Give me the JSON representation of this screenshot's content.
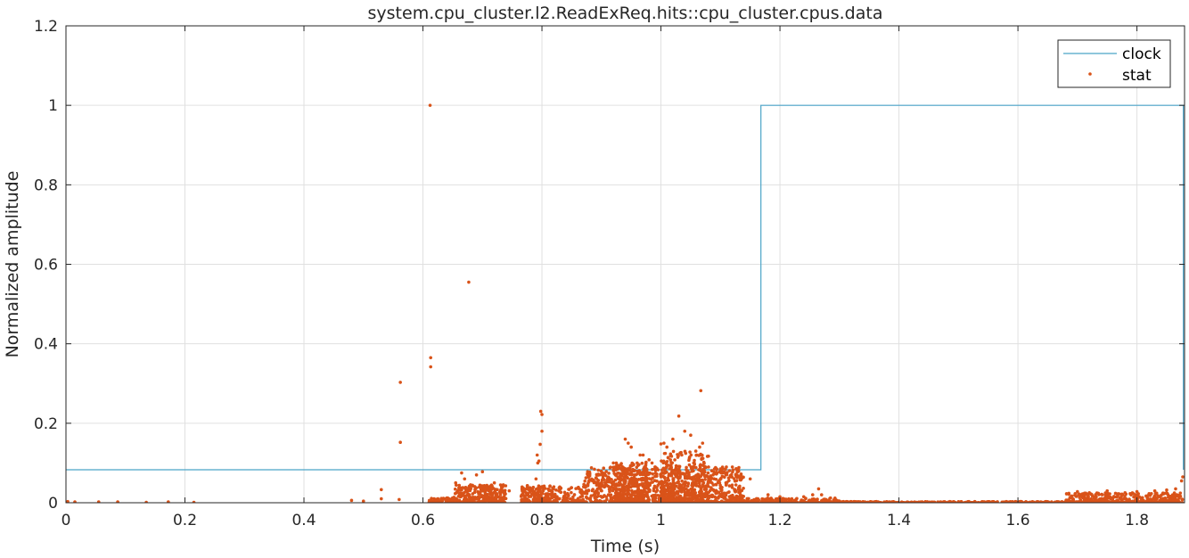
{
  "chart_data": {
    "type": "line+scatter",
    "title": "system.cpu_cluster.l2.ReadExReq.hits::cpu_cluster.cpus.data",
    "xlabel": "Time (s)",
    "ylabel": "Normalized amplitude",
    "xlim": [
      0,
      1.88
    ],
    "ylim": [
      0,
      1.2
    ],
    "xticks": [
      "0",
      "0.2",
      "0.4",
      "0.6",
      "0.8",
      "1",
      "1.2",
      "1.4",
      "1.6",
      "1.8"
    ],
    "yticks": [
      "0",
      "0.2",
      "0.4",
      "0.6",
      "0.8",
      "1",
      "1.2"
    ],
    "grid": true,
    "legend_position": "top-right",
    "colors": {
      "clock": "#4aa3c8",
      "stat": "#d95319",
      "grid": "#e0e0e0",
      "axis": "#262626"
    },
    "series": [
      {
        "name": "clock",
        "kind": "line",
        "x": [
          0,
          1.168,
          1.168,
          1.878,
          1.878
        ],
        "y": [
          0.083,
          0.083,
          1.0,
          1.0,
          0.083
        ]
      },
      {
        "name": "stat",
        "kind": "scatter",
        "points": [
          [
            0.003,
            0.003
          ],
          [
            0.015,
            0.002
          ],
          [
            0.055,
            0.002
          ],
          [
            0.087,
            0.002
          ],
          [
            0.135,
            0.001
          ],
          [
            0.172,
            0.002
          ],
          [
            0.215,
            0.001
          ],
          [
            0.48,
            0.006
          ],
          [
            0.5,
            0.004
          ],
          [
            0.53,
            0.01
          ],
          [
            0.53,
            0.033
          ],
          [
            0.56,
            0.008
          ],
          [
            0.562,
            0.303
          ],
          [
            0.562,
            0.152
          ],
          [
            0.612,
            1.0
          ],
          [
            0.613,
            0.365
          ],
          [
            0.613,
            0.342
          ],
          [
            0.677,
            0.555
          ],
          [
            0.625,
            0.01
          ],
          [
            0.64,
            0.012
          ],
          [
            0.655,
            0.05
          ],
          [
            0.665,
            0.075
          ],
          [
            0.67,
            0.06
          ],
          [
            0.675,
            0.03
          ],
          [
            0.68,
            0.045
          ],
          [
            0.69,
            0.07
          ],
          [
            0.7,
            0.04
          ],
          [
            0.7,
            0.078
          ],
          [
            0.705,
            0.03
          ],
          [
            0.72,
            0.05
          ],
          [
            0.735,
            0.045
          ],
          [
            0.745,
            0.03
          ],
          [
            0.785,
            0.03
          ],
          [
            0.79,
            0.06
          ],
          [
            0.792,
            0.12
          ],
          [
            0.793,
            0.1
          ],
          [
            0.795,
            0.105
          ],
          [
            0.797,
            0.147
          ],
          [
            0.798,
            0.23
          ],
          [
            0.8,
            0.222
          ],
          [
            0.8,
            0.18
          ],
          [
            0.803,
            0.04
          ],
          [
            0.82,
            0.04
          ],
          [
            0.87,
            0.04
          ],
          [
            0.885,
            0.055
          ],
          [
            0.9,
            0.05
          ],
          [
            0.92,
            0.1
          ],
          [
            0.925,
            0.1
          ],
          [
            0.93,
            0.087
          ],
          [
            0.94,
            0.16
          ],
          [
            0.945,
            0.15
          ],
          [
            0.95,
            0.14
          ],
          [
            0.96,
            0.1
          ],
          [
            0.965,
            0.12
          ],
          [
            0.97,
            0.12
          ],
          [
            0.975,
            0.102
          ],
          [
            0.98,
            0.108
          ],
          [
            0.985,
            0.1
          ],
          [
            0.99,
            0.09
          ],
          [
            1.0,
            0.148
          ],
          [
            1.005,
            0.15
          ],
          [
            1.01,
            0.14
          ],
          [
            1.02,
            0.16
          ],
          [
            1.03,
            0.218
          ],
          [
            1.035,
            0.12
          ],
          [
            1.04,
            0.18
          ],
          [
            1.05,
            0.17
          ],
          [
            1.055,
            0.1
          ],
          [
            1.06,
            0.12
          ],
          [
            1.065,
            0.14
          ],
          [
            1.067,
            0.282
          ],
          [
            1.07,
            0.15
          ],
          [
            1.08,
            0.09
          ],
          [
            1.09,
            0.085
          ],
          [
            1.1,
            0.085
          ],
          [
            1.11,
            0.09
          ],
          [
            1.12,
            0.09
          ],
          [
            1.13,
            0.085
          ],
          [
            1.15,
            0.06
          ],
          [
            1.18,
            0.02
          ],
          [
            1.2,
            0.015
          ],
          [
            1.22,
            0.01
          ],
          [
            1.24,
            0.015
          ],
          [
            1.255,
            0.02
          ],
          [
            1.265,
            0.035
          ],
          [
            1.27,
            0.02
          ],
          [
            1.285,
            0.012
          ],
          [
            1.7,
            0.028
          ],
          [
            1.72,
            0.025
          ],
          [
            1.75,
            0.03
          ],
          [
            1.78,
            0.025
          ],
          [
            1.8,
            0.028
          ],
          [
            1.83,
            0.03
          ],
          [
            1.85,
            0.032
          ],
          [
            1.865,
            0.035
          ],
          [
            1.875,
            0.055
          ],
          [
            1.877,
            0.065
          ]
        ],
        "dense_bands": [
          {
            "x_range": [
              0.61,
              0.66
            ],
            "y_max": 0.012,
            "count": 70
          },
          {
            "x_range": [
              0.652,
              0.74
            ],
            "y_max": 0.045,
            "count": 300
          },
          {
            "x_range": [
              0.765,
              0.815
            ],
            "y_max": 0.045,
            "count": 180
          },
          {
            "x_range": [
              0.815,
              0.87
            ],
            "y_max": 0.04,
            "count": 120
          },
          {
            "x_range": [
              0.87,
              1.14
            ],
            "y_max": 0.09,
            "count": 900
          },
          {
            "x_range": [
              0.92,
              0.98
            ],
            "y_max": 0.1,
            "count": 250
          },
          {
            "x_range": [
              1.0,
              1.08
            ],
            "y_max": 0.13,
            "count": 300
          },
          {
            "x_range": [
              1.14,
              1.3
            ],
            "y_max": 0.012,
            "count": 160
          },
          {
            "x_range": [
              1.28,
              1.878
            ],
            "y_max": 0.003,
            "count": 500
          },
          {
            "x_range": [
              1.68,
              1.878
            ],
            "y_max": 0.025,
            "count": 320
          }
        ]
      }
    ]
  }
}
